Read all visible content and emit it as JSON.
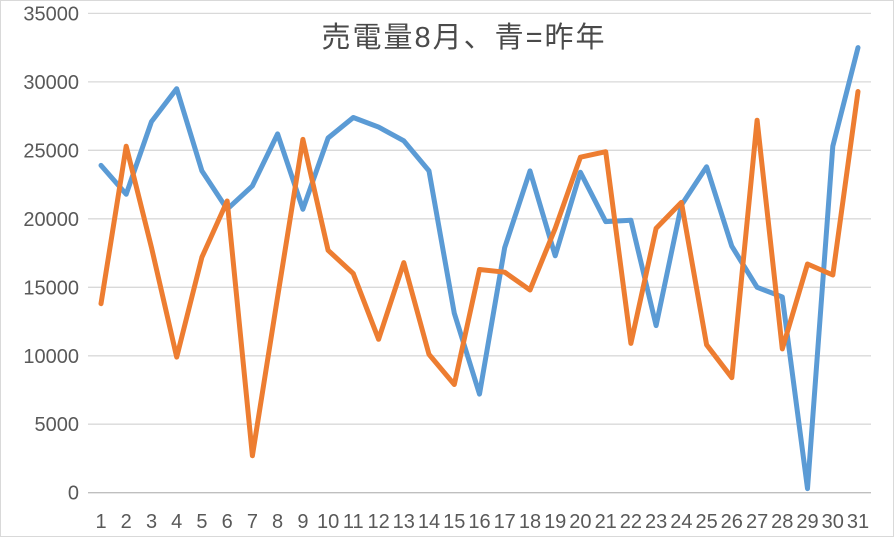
{
  "chart_data": {
    "type": "line",
    "title": "売電量8月、青=昨年",
    "x_labels": [
      "1",
      "2",
      "3",
      "4",
      "5",
      "6",
      "7",
      "8",
      "9",
      "10",
      "11",
      "12",
      "13",
      "14",
      "15",
      "16",
      "17",
      "18",
      "19",
      "20",
      "21",
      "22",
      "23",
      "24",
      "25",
      "26",
      "27",
      "28",
      "29",
      "30",
      "31"
    ],
    "y_ticks": [
      0,
      5000,
      10000,
      15000,
      20000,
      25000,
      30000,
      35000
    ],
    "ylim": [
      0,
      35000
    ],
    "grid": true,
    "legend_position": "none",
    "series": [
      {
        "id": "last-year-blue",
        "label": "昨年",
        "color": "#5B9BD5",
        "values": [
          23900,
          21800,
          27100,
          29500,
          23500,
          20700,
          22400,
          26200,
          20700,
          25900,
          27400,
          26700,
          25700,
          23500,
          13100,
          7200,
          17900,
          23500,
          17300,
          23400,
          19800,
          19900,
          12200,
          21000,
          23800,
          18000,
          15000,
          14300,
          300,
          25300,
          32500
        ]
      },
      {
        "id": "current-year-orange",
        "label": "",
        "color": "#ED7D31",
        "values": [
          13800,
          25300,
          17900,
          9900,
          17200,
          21300,
          2700,
          14300,
          25800,
          17700,
          16000,
          11200,
          16800,
          10100,
          7900,
          16300,
          16100,
          14800,
          19300,
          24500,
          24900,
          10900,
          19300,
          21200,
          10800,
          8400,
          27200,
          10500,
          16700,
          15900,
          29300
        ]
      }
    ]
  },
  "colors": {
    "background": "#ffffff",
    "border": "#d9d9d9",
    "gridline": "#d9d9d9",
    "axis_line": "#bfbfbf",
    "tick_label": "#595959",
    "title": "#4a4a4a"
  }
}
